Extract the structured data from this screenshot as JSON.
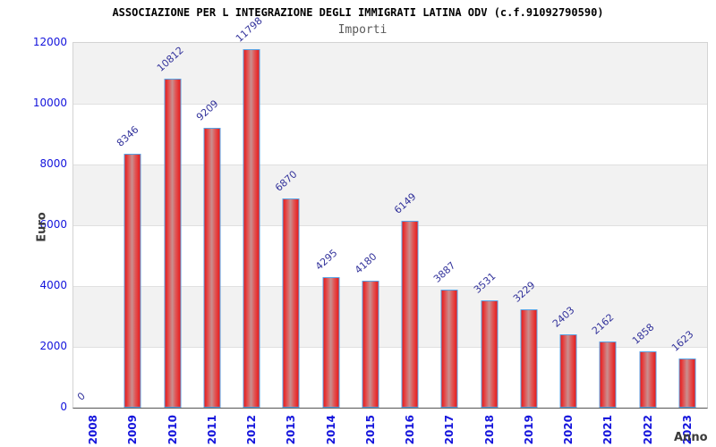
{
  "chart_data": {
    "type": "bar",
    "title": "ASSOCIAZIONE PER L INTEGRAZIONE DEGLI IMMIGRATI LATINA ODV (c.f.91092790590)",
    "subtitle": "Importi",
    "xlabel": "Anno",
    "ylabel": "Euro",
    "categories": [
      "2008",
      "2009",
      "2010",
      "2011",
      "2012",
      "2013",
      "2014",
      "2015",
      "2016",
      "2017",
      "2018",
      "2019",
      "2020",
      "2021",
      "2022",
      "2023"
    ],
    "values": [
      0,
      8346,
      10812,
      9209,
      11798,
      6870,
      4295,
      4180,
      6149,
      3887,
      3531,
      3229,
      2403,
      2162,
      1858,
      1623
    ],
    "ylim": [
      0,
      12000
    ],
    "ytick_step": 2000,
    "yticks": [
      0,
      2000,
      4000,
      6000,
      8000,
      10000,
      12000
    ],
    "grid": "horizontal-bands",
    "legend": "none",
    "bar_value_labels_rotated_deg": -42,
    "x_labels_rotated_deg": -90,
    "colors": {
      "bar_fill_edge": "#e61c1c",
      "bar_fill_highlight": "#c89090",
      "bar_border": "#58a2e4",
      "tick_label": "#1414dc",
      "value_label": "#32329b",
      "band_gray": "#f2f2f2",
      "gridline": "#e0e0e0",
      "axis_title": "#3a3a3a",
      "title": "#000000",
      "subtitle": "#5a5a5a"
    }
  }
}
